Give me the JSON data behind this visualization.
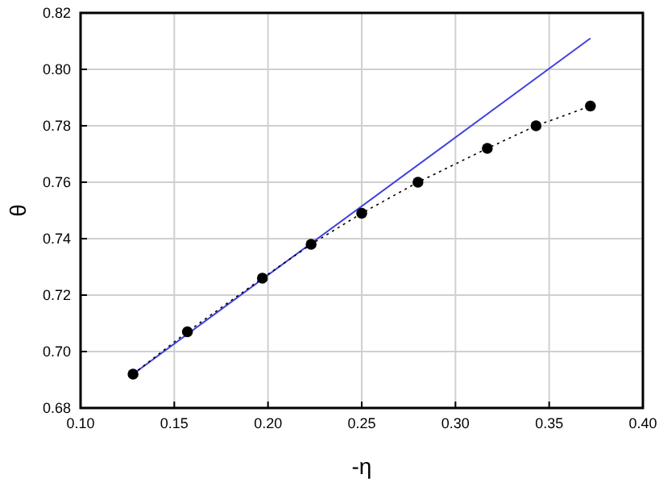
{
  "chart_data": {
    "type": "line",
    "xlabel": "-η",
    "ylabel": "θ",
    "xlim": [
      0.1,
      0.4
    ],
    "ylim": [
      0.68,
      0.82
    ],
    "xticks": [
      {
        "value": 0.1,
        "label": "0.10"
      },
      {
        "value": 0.15,
        "label": "0.15"
      },
      {
        "value": 0.2,
        "label": "0.20"
      },
      {
        "value": 0.25,
        "label": "0.25"
      },
      {
        "value": 0.3,
        "label": "0.30"
      },
      {
        "value": 0.35,
        "label": "0.35"
      },
      {
        "value": 0.4,
        "label": "0.40"
      }
    ],
    "yticks": [
      {
        "value": 0.68,
        "label": "0.68"
      },
      {
        "value": 0.7,
        "label": "0.70"
      },
      {
        "value": 0.72,
        "label": "0.72"
      },
      {
        "value": 0.74,
        "label": "0.74"
      },
      {
        "value": 0.76,
        "label": "0.76"
      },
      {
        "value": 0.78,
        "label": "0.78"
      },
      {
        "value": 0.8,
        "label": "0.80"
      },
      {
        "value": 0.82,
        "label": "0.82"
      }
    ],
    "grid": true,
    "series": [
      {
        "color": "#4040e0",
        "line_style": "solid",
        "marker": "none",
        "x": [
          0.128,
          0.372
        ],
        "values": [
          0.692,
          0.811
        ]
      },
      {
        "color": "#000000",
        "line_style": "dotted",
        "marker": "circle",
        "x": [
          0.128,
          0.157,
          0.197,
          0.223,
          0.25,
          0.28,
          0.317,
          0.343,
          0.372
        ],
        "values": [
          0.692,
          0.707,
          0.726,
          0.738,
          0.749,
          0.76,
          0.772,
          0.78,
          0.787
        ]
      }
    ]
  }
}
